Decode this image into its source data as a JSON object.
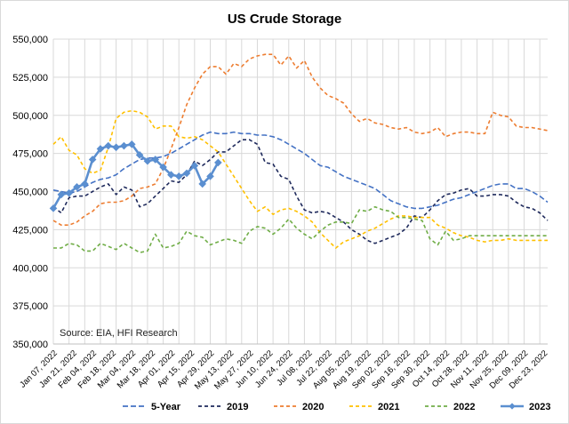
{
  "chart_data": {
    "type": "line",
    "title": "US Crude Storage",
    "annotation": "Source: EIA, HFI Research",
    "xlabel": "",
    "ylabel": "",
    "ylim": [
      350000,
      550000
    ],
    "yticks": [
      "350,000",
      "375,000",
      "400,000",
      "425,000",
      "450,000",
      "475,000",
      "500,000",
      "525,000",
      "550,000"
    ],
    "xticks": [
      "Jan 07, 2022",
      "Jan 21, 2022",
      "Feb 04, 2022",
      "Feb 18, 2022",
      "Mar 04, 2022",
      "Mar 18, 2022",
      "Apr 01, 2022",
      "Apr 15, 2022",
      "Apr 29, 2022",
      "May 13, 2022",
      "May 27, 2022",
      "Jun 10, 2022",
      "Jun 24, 2022",
      "Jul 08, 2022",
      "Jul 22, 2022",
      "Aug 05, 2022",
      "Aug 19, 2022",
      "Sep 02, 2022",
      "Sep 16, 2022",
      "Sep 30, 2022",
      "Oct 14, 2022",
      "Oct 28, 2022",
      "Nov 11, 2022",
      "Nov 25, 2022",
      "Dec 09, 2022",
      "Dec 23, 2022"
    ],
    "grid": true,
    "legend_position": "bottom",
    "series": [
      {
        "name": "5-Year",
        "color": "#4472C4",
        "dash": "long",
        "values": [
          451000,
          450000,
          449000,
          450000,
          453000,
          456000,
          458000,
          459000,
          461000,
          465000,
          468000,
          471000,
          472000,
          472000,
          473000,
          475000,
          478000,
          481000,
          484000,
          487000,
          489000,
          488000,
          488000,
          489000,
          488000,
          488000,
          487000,
          487000,
          486000,
          484000,
          481000,
          478000,
          475000,
          471000,
          467000,
          466000,
          463000,
          460000,
          458000,
          456000,
          454000,
          452000,
          448000,
          444000,
          442000,
          440000,
          439000,
          439000,
          440000,
          441000,
          443000,
          445000,
          446000,
          448000,
          450000,
          452000,
          454000,
          455000,
          455000,
          452000,
          452000,
          450000,
          447000,
          443000
        ]
      },
      {
        "name": "2019",
        "color": "#1F2A5C",
        "dash": "short",
        "values": [
          440000,
          436000,
          446000,
          447000,
          447000,
          450000,
          453000,
          455000,
          448000,
          453000,
          451000,
          440000,
          442000,
          447000,
          452000,
          457000,
          456000,
          461000,
          470000,
          467000,
          471000,
          476000,
          476000,
          480000,
          484000,
          484000,
          481000,
          469000,
          468000,
          460000,
          458000,
          447000,
          438000,
          436000,
          437000,
          436000,
          433000,
          430000,
          425000,
          422000,
          418000,
          416000,
          418000,
          420000,
          422000,
          426000,
          434000,
          433000,
          438000,
          444000,
          448000,
          449000,
          451000,
          452000,
          447000,
          447000,
          448000,
          448000,
          447000,
          443000,
          440000,
          439000,
          436000,
          431000
        ]
      },
      {
        "name": "2020",
        "color": "#ED7D31",
        "dash": "short",
        "values": [
          431000,
          428000,
          428000,
          430000,
          434000,
          437000,
          442000,
          443000,
          443000,
          444000,
          447000,
          452000,
          453000,
          455000,
          465000,
          478000,
          492000,
          507000,
          518000,
          527000,
          532000,
          532000,
          527000,
          534000,
          532000,
          537000,
          539000,
          540000,
          540000,
          533000,
          539000,
          531000,
          536000,
          525000,
          518000,
          513000,
          511000,
          508000,
          501000,
          496000,
          498000,
          495000,
          494000,
          492000,
          491000,
          492000,
          489000,
          488000,
          489000,
          492000,
          486000,
          488000,
          489000,
          489000,
          488000,
          488000,
          502000,
          500000,
          499000,
          493000,
          492000,
          492000,
          491000,
          490000
        ]
      },
      {
        "name": "2021",
        "color": "#FFC000",
        "dash": "short",
        "values": [
          481000,
          486000,
          477000,
          474000,
          465000,
          462000,
          464000,
          479000,
          498000,
          502000,
          503000,
          502000,
          499000,
          491000,
          493000,
          493000,
          486000,
          485000,
          486000,
          484000,
          480000,
          476000,
          468000,
          460000,
          452000,
          444000,
          437000,
          440000,
          435000,
          438000,
          439000,
          437000,
          434000,
          430000,
          423000,
          418000,
          413000,
          417000,
          419000,
          421000,
          424000,
          426000,
          429000,
          432000,
          434000,
          434000,
          433000,
          433000,
          433000,
          428000,
          426000,
          423000,
          421000,
          420000,
          418000,
          417000,
          418000,
          418000,
          419000,
          418000,
          418000,
          418000,
          418000,
          418000
        ]
      },
      {
        "name": "2022",
        "color": "#70AD47",
        "dash": "short",
        "values": [
          413000,
          413000,
          416000,
          415000,
          411000,
          411000,
          416000,
          414000,
          412000,
          416000,
          413000,
          410000,
          411000,
          422000,
          413000,
          414000,
          416000,
          424000,
          421000,
          420000,
          415000,
          417000,
          419000,
          418000,
          416000,
          424000,
          427000,
          426000,
          422000,
          426000,
          432000,
          426000,
          422000,
          419000,
          424000,
          428000,
          430000,
          430000,
          429000,
          438000,
          437000,
          440000,
          438000,
          437000,
          433000,
          433000,
          432000,
          431000,
          419000,
          415000,
          424000,
          418000,
          419000,
          421000,
          421000,
          421000,
          421000,
          421000,
          421000,
          421000,
          421000,
          421000,
          421000,
          421000
        ]
      },
      {
        "name": "2023",
        "color": "#5B8FD0",
        "dash": "solid",
        "markers": true,
        "values": [
          439000,
          448000,
          449000,
          453000,
          455000,
          471000,
          478000,
          480000,
          479000,
          480000,
          481000,
          474000,
          470000,
          471000,
          466000,
          461000,
          460000,
          462000,
          467000,
          455000,
          460000,
          469000
        ]
      }
    ]
  }
}
